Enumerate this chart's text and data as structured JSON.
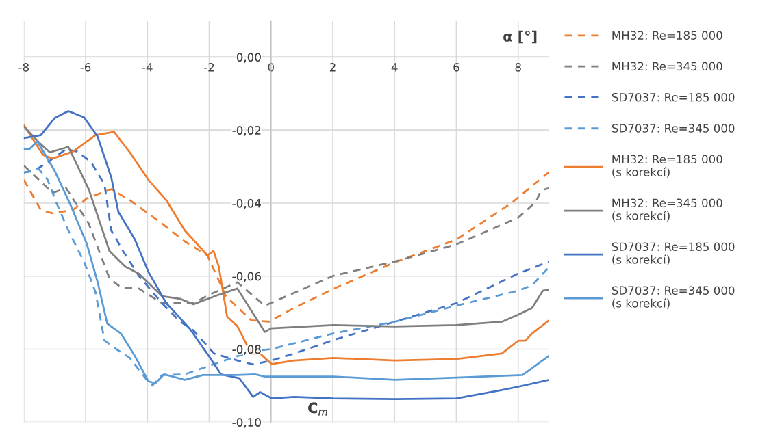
{
  "chart_data": {
    "type": "line",
    "xlabel": "α [°]",
    "ylabel": "C$_{m}$",
    "xlim": [
      -8,
      9
    ],
    "ylim": [
      -0.1,
      0.01
    ],
    "xticks": [
      -8,
      -6,
      -4,
      -2,
      0,
      2,
      4,
      6,
      8
    ],
    "yticks": [
      {
        "value": 0,
        "label": "0,00"
      },
      {
        "value": -0.02,
        "label": "-0,02"
      },
      {
        "value": -0.04,
        "label": "-0,04"
      },
      {
        "value": -0.06,
        "label": "-0,06"
      },
      {
        "value": -0.08,
        "label": "-0,08"
      },
      {
        "value": -0.1,
        "label": "-0,10"
      }
    ],
    "grid": true,
    "legend": "right",
    "marker": "none",
    "series": [
      {
        "name": "MH32: Re=185 000",
        "color": "#ed7d31",
        "line_style": "dashed",
        "x": [
          -8,
          -7.45,
          -7.07,
          -6.41,
          -5.96,
          -5.17,
          -4.57,
          -3.53,
          -2.79,
          -2.06,
          -1.46,
          -0.64,
          -0.07,
          0.75,
          2.02,
          4.01,
          6.0,
          7.78,
          9.0
        ],
        "values": [
          -0.0336,
          -0.0419,
          -0.0428,
          -0.0419,
          -0.0387,
          -0.0362,
          -0.0392,
          -0.0456,
          -0.0505,
          -0.0543,
          -0.0655,
          -0.0721,
          -0.0725,
          -0.0687,
          -0.0635,
          -0.0562,
          -0.05,
          -0.04,
          -0.0315
        ]
      },
      {
        "name": "MH32: Re=345 000",
        "color": "#7f7f7f",
        "line_style": "dashed",
        "x": [
          -8,
          -7.07,
          -6.63,
          -5.9,
          -5.23,
          -4.86,
          -4.28,
          -3.53,
          -2.51,
          -1.97,
          -1.09,
          -0.2,
          2.02,
          4.01,
          6.0,
          8.0,
          8.58,
          8.74,
          9.0
        ],
        "values": [
          -0.0297,
          -0.0372,
          -0.0359,
          -0.0456,
          -0.0606,
          -0.0631,
          -0.0634,
          -0.0674,
          -0.0674,
          -0.065,
          -0.0617,
          -0.0681,
          -0.0599,
          -0.056,
          -0.0513,
          -0.044,
          -0.0396,
          -0.0365,
          -0.0359
        ]
      },
      {
        "name": "SD7037: Re=185 000",
        "color": "#4472c4",
        "line_style": "dashed",
        "x": [
          -8,
          -7.67,
          -7.16,
          -6.63,
          -6.27,
          -5.83,
          -5.39,
          -5.17,
          -4.79,
          -4.28,
          -3.53,
          -2.95,
          -2.51,
          -1.84,
          -1.09,
          -0.58,
          0.02,
          0.75,
          2.02,
          4.01,
          6.0,
          8.0,
          9.0
        ],
        "values": [
          -0.0316,
          -0.0312,
          -0.0284,
          -0.0252,
          -0.0259,
          -0.0287,
          -0.0349,
          -0.0475,
          -0.0531,
          -0.0599,
          -0.0674,
          -0.0724,
          -0.0749,
          -0.0812,
          -0.0831,
          -0.0842,
          -0.0831,
          -0.0812,
          -0.0775,
          -0.0725,
          -0.0674,
          -0.0593,
          -0.056
        ]
      },
      {
        "name": "SD7037: Re=345 000",
        "color": "#5b9bd5",
        "line_style": "dashed",
        "x": [
          -8,
          -7.52,
          -7.23,
          -6.94,
          -6.56,
          -6.05,
          -5.68,
          -5.39,
          -5.01,
          -4.57,
          -4.06,
          -3.84,
          -3.53,
          -2.79,
          -1.84,
          -1.09,
          -0.35,
          0.0,
          2.02,
          4.01,
          6.0,
          8.0,
          8.45,
          9.0
        ],
        "values": [
          -0.0317,
          -0.0306,
          -0.0336,
          -0.04,
          -0.0475,
          -0.0561,
          -0.0644,
          -0.0776,
          -0.08,
          -0.0824,
          -0.088,
          -0.09,
          -0.0871,
          -0.0869,
          -0.0841,
          -0.0819,
          -0.0803,
          -0.08,
          -0.0757,
          -0.0725,
          -0.0681,
          -0.064,
          -0.0625,
          -0.0575
        ]
      },
      {
        "name": "MH32: Re=185 000\n(s korekcí)",
        "color": "#ed7d31",
        "line_style": "solid",
        "x": [
          -8,
          -7.38,
          -7.07,
          -6.41,
          -5.68,
          -5.08,
          -4.57,
          -3.97,
          -3.39,
          -2.79,
          -2.06,
          -1.86,
          -1.69,
          -1.42,
          -1.09,
          -0.64,
          -0.35,
          0.02,
          0.75,
          2.02,
          4.01,
          6.0,
          7.47,
          8.0,
          8.23,
          8.45,
          9.0
        ],
        "values": [
          -0.0186,
          -0.0268,
          -0.0278,
          -0.0259,
          -0.0214,
          -0.0205,
          -0.0261,
          -0.0336,
          -0.0392,
          -0.0475,
          -0.0543,
          -0.0531,
          -0.0574,
          -0.0711,
          -0.0737,
          -0.0812,
          -0.0812,
          -0.0841,
          -0.0831,
          -0.0824,
          -0.0831,
          -0.0827,
          -0.0812,
          -0.0777,
          -0.0777,
          -0.0757,
          -0.0721
        ]
      },
      {
        "name": "MH32: Re=345 000\n(s korekcí)",
        "color": "#7f7f7f",
        "line_style": "solid",
        "x": [
          -8,
          -7.52,
          -7.16,
          -6.56,
          -5.9,
          -5.23,
          -4.72,
          -4.28,
          -3.53,
          -2.95,
          -2.51,
          -1.75,
          -1.09,
          -0.2,
          0.0,
          2.02,
          4.01,
          6.0,
          7.47,
          8.0,
          8.45,
          8.8,
          9.0
        ],
        "values": [
          -0.019,
          -0.0233,
          -0.0261,
          -0.0246,
          -0.0362,
          -0.0531,
          -0.0574,
          -0.0593,
          -0.0655,
          -0.0662,
          -0.0677,
          -0.0653,
          -0.0634,
          -0.0753,
          -0.0743,
          -0.0734,
          -0.0738,
          -0.0734,
          -0.0725,
          -0.0706,
          -0.0687,
          -0.064,
          -0.0637
        ]
      },
      {
        "name": "SD7037: Re=185 000\n(s korekcí)",
        "color": "#4472c4",
        "line_style": "solid",
        "x": [
          -8,
          -7.45,
          -7.0,
          -6.56,
          -6.05,
          -5.61,
          -5.17,
          -4.94,
          -4.41,
          -3.97,
          -3.39,
          -2.64,
          -1.97,
          -1.62,
          -1.02,
          -0.58,
          -0.35,
          0.02,
          0.75,
          2.02,
          4.01,
          6.0,
          7.47,
          8.0,
          9.0
        ],
        "values": [
          -0.0222,
          -0.0214,
          -0.0167,
          -0.0148,
          -0.0165,
          -0.0218,
          -0.033,
          -0.0424,
          -0.0499,
          -0.0588,
          -0.0674,
          -0.0743,
          -0.0824,
          -0.0869,
          -0.088,
          -0.0931,
          -0.0918,
          -0.0935,
          -0.0931,
          -0.0935,
          -0.0937,
          -0.0935,
          -0.0912,
          -0.0903,
          -0.0884
        ]
      },
      {
        "name": "SD7037: Re=345 000\n(s korekcí)",
        "color": "#5b9bd5",
        "line_style": "solid",
        "x": [
          -8,
          -7.82,
          -7.56,
          -7.0,
          -6.49,
          -5.96,
          -5.61,
          -5.3,
          -4.86,
          -4.41,
          -3.97,
          -3.75,
          -3.46,
          -2.79,
          -2.2,
          -1.09,
          -0.51,
          -0.2,
          0.75,
          2.02,
          4.01,
          6.0,
          8.14,
          9.0
        ],
        "values": [
          -0.0252,
          -0.0252,
          -0.0231,
          -0.0312,
          -0.0405,
          -0.0512,
          -0.0617,
          -0.073,
          -0.0757,
          -0.0818,
          -0.0888,
          -0.0894,
          -0.0869,
          -0.0884,
          -0.0871,
          -0.0871,
          -0.0869,
          -0.0875,
          -0.0875,
          -0.0875,
          -0.0884,
          -0.0878,
          -0.0871,
          -0.0818
        ]
      }
    ]
  }
}
